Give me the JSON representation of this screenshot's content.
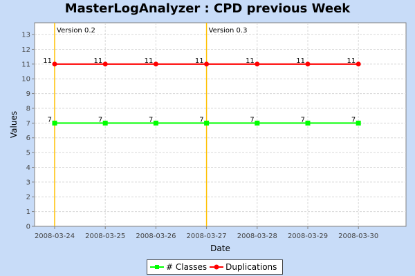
{
  "chart_data": {
    "type": "line",
    "title": "MasterLogAnalyzer : CPD previous Week",
    "xlabel": "Date",
    "ylabel": "Values",
    "categories": [
      "2008-03-24",
      "2008-03-25",
      "2008-03-26",
      "2008-03-27",
      "2008-03-28",
      "2008-03-29",
      "2008-03-30"
    ],
    "ylim": [
      0,
      13.8
    ],
    "yticks": [
      0,
      1,
      2,
      3,
      4,
      5,
      6,
      7,
      8,
      9,
      10,
      11,
      12,
      13
    ],
    "grid": true,
    "legend_position": "bottom",
    "series": [
      {
        "name": "# Classes",
        "color": "#00ff00",
        "marker": "square",
        "values": [
          7,
          7,
          7,
          7,
          7,
          7,
          7
        ]
      },
      {
        "name": "Duplications",
        "color": "#ff0000",
        "marker": "circle",
        "values": [
          11,
          11,
          11,
          11,
          11,
          11,
          11
        ]
      }
    ],
    "markers": [
      {
        "label": "Version 0.2",
        "x": "2008-03-24",
        "color": "#ffc000"
      },
      {
        "label": "Version 0.3",
        "x": "2008-03-27",
        "color": "#ffc000"
      }
    ]
  }
}
